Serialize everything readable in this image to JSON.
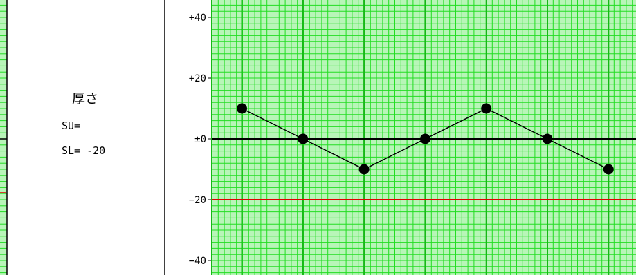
{
  "left_panel": {
    "title": "厚さ",
    "su_label": "SU=",
    "sl_label": "SL= -20"
  },
  "colors": {
    "grid_minor": "#22dd22",
    "grid_bg": "#b8f5b8",
    "spec_line": "#e00000",
    "series": "#000000",
    "zero_line": "#000000"
  },
  "chart_data": {
    "type": "line",
    "title": "",
    "xlabel": "",
    "ylabel": "",
    "ylim": [
      -44,
      44
    ],
    "yticks": [
      {
        "value": 40,
        "label": "+40"
      },
      {
        "value": 20,
        "label": "+20"
      },
      {
        "value": 0,
        "label": "±0"
      },
      {
        "value": -20,
        "label": "−20"
      },
      {
        "value": -40,
        "label": "−40"
      }
    ],
    "x": [
      1,
      2,
      3,
      4,
      5,
      6,
      7
    ],
    "series": [
      {
        "values": [
          10,
          0,
          -10,
          0,
          10,
          0,
          -10
        ]
      }
    ],
    "reference_lines": [
      {
        "value": 0,
        "color": "#000000"
      },
      {
        "value": -20,
        "color": "#e00000"
      }
    ]
  }
}
